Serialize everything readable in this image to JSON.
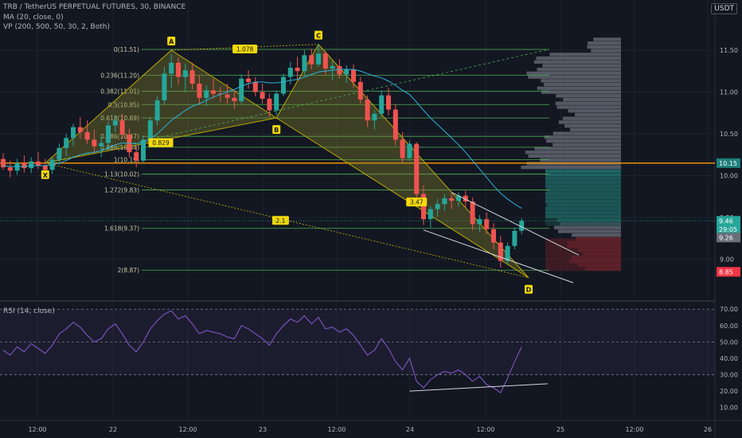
{
  "header": {
    "symbol_line": "TRB / TetherUS PERPETUAL FUTURES, 30, BINANCE",
    "ma_line": "MA (20, close, 0)",
    "vp_line": "VP (200, 500, 50, 30, 2, Both)",
    "currency": "USDT"
  },
  "rsi_title": "RSI (14, close)",
  "colors": {
    "background": "#131722",
    "up": "#26a69a",
    "down": "#ef5350",
    "fib_line": "#4caf50",
    "pattern_fill": "#8d8a2a",
    "pattern_label": "#f5d90a",
    "volume_profile": "#8a8f9b",
    "orange_level": "#ff9800",
    "rsi_line": "#7e57c2",
    "current_price_tag": "#26a69a",
    "red_tag": "#f23645"
  },
  "chart_data": [
    {
      "type": "candlestick",
      "title": "TRB / TetherUS PERPETUAL FUTURES, 30, BINANCE",
      "x_ticks": [
        "12:00",
        "22",
        "12:00",
        "23",
        "12:00",
        "24",
        "12:00",
        "25",
        "12:00",
        "26"
      ],
      "y_ticks": [
        11.5,
        11.0,
        10.5,
        10.0,
        9.5,
        9.0
      ],
      "ylim": [
        8.52,
        12.1
      ],
      "grid": true,
      "fib_levels": [
        {
          "label": "0(11.51)",
          "value": 11.51
        },
        {
          "label": "0.236(11.20)",
          "value": 11.2
        },
        {
          "label": "0.382(11.01)",
          "value": 11.01
        },
        {
          "label": "0.5(10.85)",
          "value": 10.85
        },
        {
          "label": "0.618(10.69)",
          "value": 10.69
        },
        {
          "label": "0.786(10.47)",
          "value": 10.47
        },
        {
          "label": "0.886(10.34)",
          "value": 10.34
        },
        {
          "label": "1(10.19)",
          "value": 10.19
        },
        {
          "label": "1.13(10.02)",
          "value": 10.02
        },
        {
          "label": "1.272(9.83)",
          "value": 9.83
        },
        {
          "label": "1.618(9.37)",
          "value": 9.37
        },
        {
          "label": "2(8.87)",
          "value": 8.87
        }
      ],
      "harmonic_points": [
        {
          "label": "X",
          "x": 6,
          "y": 10.15
        },
        {
          "label": "A",
          "x": 24,
          "y": 11.5
        },
        {
          "label": "B",
          "x": 39,
          "y": 10.69
        },
        {
          "label": "C",
          "x": 45,
          "y": 11.57
        },
        {
          "label": "D",
          "x": 75,
          "y": 8.78
        }
      ],
      "ratio_labels": [
        "1.078",
        "0.829",
        "2.1",
        "3.47"
      ],
      "price_tags": [
        {
          "text": "10.15",
          "value": 10.15,
          "color": "#1e7f7b"
        },
        {
          "text": "9.46",
          "value": 9.46,
          "color": "#26a69a"
        },
        {
          "text": "29:05",
          "value": 9.36,
          "color": "#26a69a"
        },
        {
          "text": "9.26",
          "value": 9.26,
          "color": "#6b6f7a"
        },
        {
          "text": "8.85",
          "value": 8.85,
          "color": "#f23645"
        }
      ],
      "orange_level": 10.15,
      "candles": [
        [
          10.2,
          10.27,
          10.07,
          10.1
        ],
        [
          10.1,
          10.18,
          9.98,
          10.06
        ],
        [
          10.06,
          10.2,
          10.01,
          10.15
        ],
        [
          10.15,
          10.24,
          10.04,
          10.09
        ],
        [
          10.09,
          10.22,
          10.03,
          10.17
        ],
        [
          10.17,
          10.28,
          10.08,
          10.12
        ],
        [
          10.12,
          10.2,
          10.02,
          10.07
        ],
        [
          10.07,
          10.22,
          10.02,
          10.19
        ],
        [
          10.19,
          10.38,
          10.13,
          10.33
        ],
        [
          10.33,
          10.5,
          10.23,
          10.45
        ],
        [
          10.45,
          10.62,
          10.35,
          10.58
        ],
        [
          10.58,
          10.7,
          10.44,
          10.52
        ],
        [
          10.52,
          10.66,
          10.38,
          10.43
        ],
        [
          10.43,
          10.55,
          10.26,
          10.35
        ],
        [
          10.35,
          10.47,
          10.22,
          10.39
        ],
        [
          10.39,
          10.65,
          10.32,
          10.6
        ],
        [
          10.6,
          10.72,
          10.52,
          10.66
        ],
        [
          10.66,
          10.74,
          10.44,
          10.49
        ],
        [
          10.49,
          10.56,
          10.22,
          10.28
        ],
        [
          10.28,
          10.35,
          10.1,
          10.18
        ],
        [
          10.18,
          10.48,
          10.15,
          10.43
        ],
        [
          10.43,
          10.7,
          10.4,
          10.66
        ],
        [
          10.66,
          10.95,
          10.6,
          10.9
        ],
        [
          10.9,
          11.3,
          10.85,
          11.22
        ],
        [
          11.22,
          11.45,
          11.05,
          11.35
        ],
        [
          11.35,
          11.41,
          11.09,
          11.18
        ],
        [
          11.18,
          11.34,
          11.0,
          11.26
        ],
        [
          11.26,
          11.35,
          11.03,
          11.1
        ],
        [
          11.1,
          11.2,
          10.85,
          10.93
        ],
        [
          10.93,
          11.08,
          10.83,
          11.02
        ],
        [
          11.02,
          11.16,
          10.92,
          10.98
        ],
        [
          10.98,
          11.06,
          10.88,
          10.97
        ],
        [
          10.97,
          11.1,
          10.86,
          10.93
        ],
        [
          10.93,
          11.02,
          10.8,
          10.89
        ],
        [
          10.89,
          11.21,
          10.86,
          11.16
        ],
        [
          11.16,
          11.26,
          11.04,
          11.12
        ],
        [
          11.12,
          11.18,
          10.95,
          11.0
        ],
        [
          11.0,
          11.1,
          10.86,
          10.92
        ],
        [
          10.92,
          10.98,
          10.7,
          10.78
        ],
        [
          10.78,
          11.02,
          10.72,
          10.98
        ],
        [
          10.98,
          11.22,
          10.95,
          11.18
        ],
        [
          11.18,
          11.36,
          11.09,
          11.29
        ],
        [
          11.29,
          11.42,
          11.14,
          11.25
        ],
        [
          11.25,
          11.5,
          11.2,
          11.44
        ],
        [
          11.44,
          11.52,
          11.27,
          11.33
        ],
        [
          11.33,
          11.58,
          11.3,
          11.46
        ],
        [
          11.46,
          11.49,
          11.21,
          11.28
        ],
        [
          11.28,
          11.37,
          11.14,
          11.31
        ],
        [
          11.31,
          11.39,
          11.16,
          11.21
        ],
        [
          11.21,
          11.32,
          11.11,
          11.27
        ],
        [
          11.27,
          11.33,
          11.05,
          11.12
        ],
        [
          11.12,
          11.18,
          10.86,
          10.91
        ],
        [
          10.91,
          10.96,
          10.58,
          10.66
        ],
        [
          10.66,
          10.78,
          10.55,
          10.74
        ],
        [
          10.74,
          11.02,
          10.7,
          10.96
        ],
        [
          10.96,
          11.05,
          10.72,
          10.79
        ],
        [
          10.79,
          10.86,
          10.36,
          10.43
        ],
        [
          10.43,
          10.52,
          10.16,
          10.21
        ],
        [
          10.21,
          10.42,
          10.18,
          10.38
        ],
        [
          10.38,
          10.4,
          9.72,
          9.78
        ],
        [
          9.78,
          9.88,
          9.41,
          9.48
        ],
        [
          9.48,
          9.64,
          9.38,
          9.6
        ],
        [
          9.6,
          9.72,
          9.51,
          9.66
        ],
        [
          9.66,
          9.78,
          9.58,
          9.73
        ],
        [
          9.73,
          9.79,
          9.6,
          9.7
        ],
        [
          9.7,
          9.8,
          9.63,
          9.76
        ],
        [
          9.76,
          9.82,
          9.62,
          9.69
        ],
        [
          9.69,
          9.74,
          9.35,
          9.42
        ],
        [
          9.42,
          9.53,
          9.33,
          9.48
        ],
        [
          9.48,
          9.56,
          9.3,
          9.36
        ],
        [
          9.36,
          9.43,
          9.12,
          9.2
        ],
        [
          9.2,
          9.28,
          8.9,
          8.98
        ],
        [
          8.98,
          9.2,
          8.94,
          9.16
        ],
        [
          9.16,
          9.38,
          9.12,
          9.34
        ],
        [
          9.34,
          9.49,
          9.3,
          9.46
        ]
      ],
      "ma20": [
        10.12,
        10.11,
        10.11,
        10.11,
        10.12,
        10.12,
        10.12,
        10.13,
        10.15,
        10.18,
        10.22,
        10.25,
        10.27,
        10.28,
        10.3,
        10.33,
        10.37,
        10.39,
        10.39,
        10.38,
        10.4,
        10.44,
        10.5,
        10.58,
        10.66,
        10.72,
        10.78,
        10.83,
        10.86,
        10.9,
        10.94,
        10.97,
        11.0,
        11.03,
        11.07,
        11.1,
        11.12,
        11.12,
        11.11,
        11.11,
        11.12,
        11.14,
        11.15,
        11.18,
        11.21,
        11.24,
        11.25,
        11.26,
        11.27,
        11.27,
        11.27,
        11.25,
        11.22,
        11.19,
        11.17,
        11.13,
        11.08,
        11.02,
        10.97,
        10.88,
        10.78,
        10.69,
        10.61,
        10.53,
        10.45,
        10.37,
        10.28,
        10.18,
        10.08,
        9.98,
        9.88,
        9.79,
        9.72,
        9.66,
        9.61
      ]
    },
    {
      "type": "line",
      "title": "RSI (14, close)",
      "y_ticks": [
        70.0,
        60.0,
        50.0,
        40.0,
        30.0,
        20.0,
        10.0
      ],
      "ylim": [
        5,
        74
      ],
      "band": [
        30,
        70
      ],
      "midline": 50,
      "values": [
        45,
        42,
        47,
        44,
        49,
        46,
        43,
        48,
        55,
        58,
        62,
        59,
        54,
        50,
        52,
        58,
        61,
        55,
        48,
        44,
        50,
        58,
        63,
        67,
        69,
        64,
        66,
        61,
        55,
        57,
        56,
        55,
        53,
        52,
        60,
        58,
        55,
        52,
        48,
        55,
        60,
        64,
        62,
        66,
        61,
        65,
        58,
        59,
        56,
        58,
        54,
        48,
        42,
        45,
        52,
        46,
        38,
        33,
        40,
        26,
        22,
        27,
        30,
        32,
        31,
        33,
        30,
        26,
        29,
        24,
        22,
        19,
        28,
        38,
        47
      ],
      "divergence_line_label": ""
    }
  ]
}
